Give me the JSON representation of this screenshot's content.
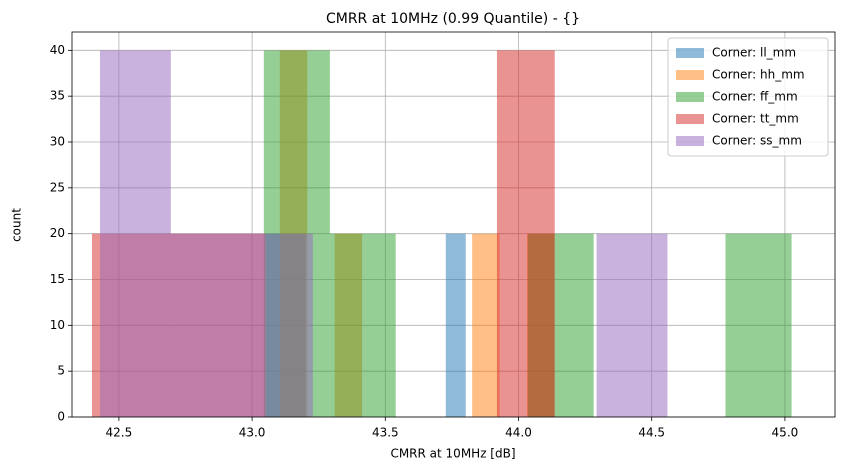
{
  "chart_data": {
    "type": "histogram",
    "title": "CMRR at 10MHz (0.99 Quantile) - {}",
    "xlabel": "CMRR at 10MHz [dB]",
    "ylabel": "count",
    "xlim": [
      42.324,
      45.188
    ],
    "ylim": [
      0,
      42
    ],
    "xticks": [
      42.5,
      {
        "value": 43.0,
        "label": "43.0"
      },
      43.5,
      {
        "value": 44.0,
        "label": "44.0"
      },
      44.5,
      {
        "value": 45.0,
        "label": "45.0"
      }
    ],
    "yticks": [
      0,
      5,
      10,
      15,
      20,
      25,
      30,
      35,
      40
    ],
    "grid": true,
    "legend": "upper right",
    "alpha": 0.5,
    "series": [
      {
        "name": "Corner: ll_mm",
        "color": "#1f77b4",
        "bins": [
          43.051,
          43.126,
          43.201,
          43.276,
          43.351,
          43.427,
          43.502,
          43.577,
          43.652,
          43.727,
          43.802
        ],
        "counts": [
          20,
          20,
          0,
          0,
          0,
          0,
          0,
          0,
          0,
          20
        ]
      },
      {
        "name": "Corner: hh_mm",
        "color": "#ff7f0e",
        "bins": [
          43.104,
          43.207,
          43.31,
          43.413,
          43.517,
          43.62,
          43.723,
          43.826,
          43.929,
          44.032,
          44.135
        ],
        "counts": [
          40,
          0,
          20,
          0,
          0,
          0,
          0,
          20,
          0,
          20
        ]
      },
      {
        "name": "Corner: ff_mm",
        "color": "#2ca02c",
        "bins": [
          43.044,
          43.292,
          43.539,
          43.787,
          44.035,
          44.282,
          44.53,
          44.777,
          45.025
        ],
        "counts": [
          40,
          20,
          0,
          0,
          20,
          0,
          0,
          20
        ]
      },
      {
        "name": "Corner: tt_mm",
        "color": "#d62728",
        "bins": [
          42.399,
          42.616,
          42.833,
          43.05,
          43.268,
          43.485,
          43.702,
          43.919,
          44.136
        ],
        "counts": [
          20,
          20,
          20,
          0,
          0,
          0,
          0,
          40
        ]
      },
      {
        "name": "Corner: ss_mm",
        "color": "#9467bd",
        "bins": [
          42.429,
          42.695,
          42.961,
          43.228,
          43.494,
          43.76,
          44.027,
          44.293,
          44.559
        ],
        "counts": [
          40,
          20,
          20,
          0,
          0,
          0,
          0,
          20
        ]
      }
    ]
  }
}
